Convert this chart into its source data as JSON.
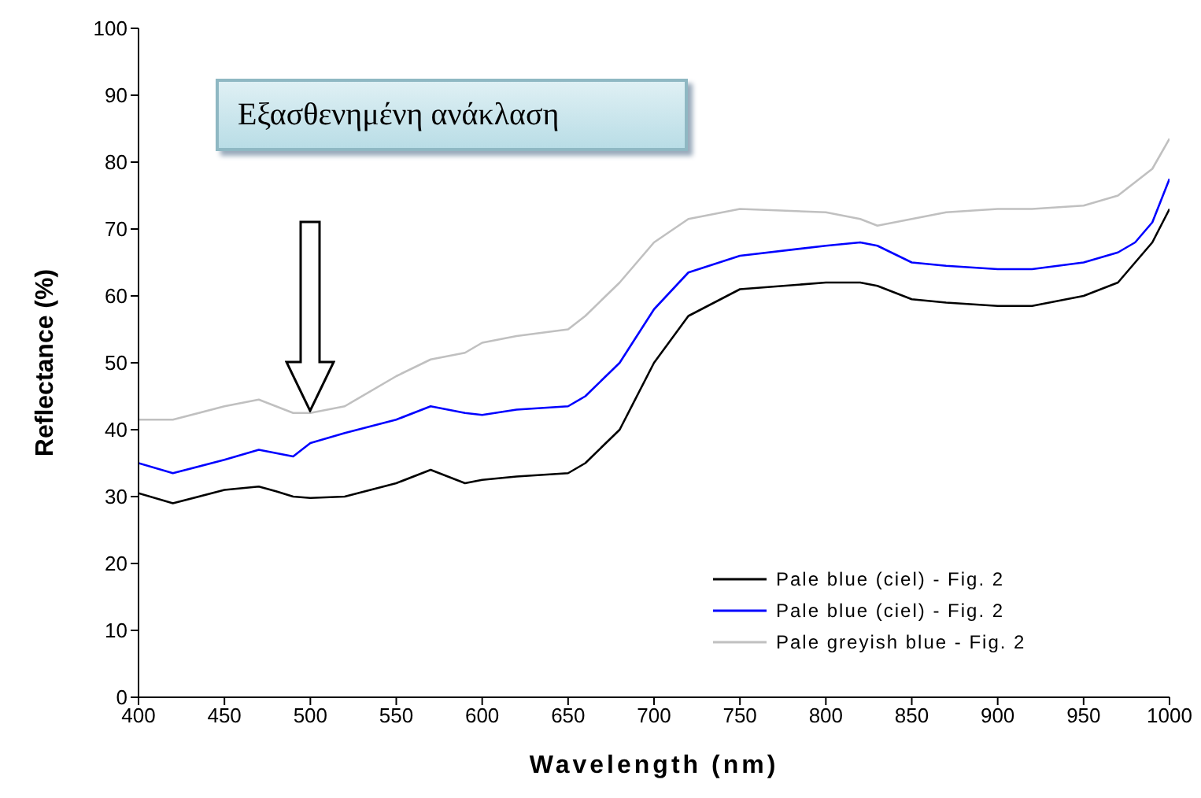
{
  "chart_data": {
    "type": "line",
    "xlabel": "Wavelength (nm)",
    "ylabel": "Reflectance (%)",
    "x": [
      400,
      420,
      450,
      470,
      480,
      490,
      500,
      520,
      550,
      570,
      590,
      600,
      620,
      650,
      660,
      680,
      700,
      720,
      750,
      800,
      820,
      830,
      850,
      870,
      900,
      920,
      950,
      970,
      980,
      990,
      1000
    ],
    "series": [
      {
        "name": "Pale blue (ciel) - Fig. 2",
        "color": "#000000",
        "values": [
          30.5,
          29,
          31,
          31.5,
          30.8,
          30,
          29.8,
          30,
          32,
          34,
          32,
          32.5,
          33,
          33.5,
          35,
          40,
          50,
          57,
          61,
          62,
          62,
          61.5,
          59.5,
          59,
          58.5,
          58.5,
          60,
          62,
          65,
          68,
          73
        ]
      },
      {
        "name": "Pale blue (ciel) - Fig. 2",
        "color": "#0000ff",
        "values": [
          35,
          33.5,
          35.5,
          37,
          36.5,
          36,
          38,
          39.5,
          41.5,
          43.5,
          42.5,
          42.2,
          43,
          43.5,
          45,
          50,
          58,
          63.5,
          66,
          67.5,
          68,
          67.5,
          65,
          64.5,
          64,
          64,
          65,
          66.5,
          68,
          71,
          77.5
        ]
      },
      {
        "name": "Pale greyish blue - Fig. 2",
        "color": "#c0c0c0",
        "values": [
          41.5,
          41.5,
          43.5,
          44.5,
          43.5,
          42.5,
          42.5,
          43.5,
          48,
          50.5,
          51.5,
          53,
          54,
          55,
          57,
          62,
          68,
          71.5,
          73,
          72.5,
          71.5,
          70.5,
          71.5,
          72.5,
          73,
          73,
          73.5,
          75,
          77,
          79,
          83.5
        ]
      }
    ],
    "xlim": [
      400,
      1000
    ],
    "xticks": [
      400,
      450,
      500,
      550,
      600,
      650,
      700,
      750,
      800,
      850,
      900,
      950,
      1000
    ],
    "ylim": [
      0,
      100
    ],
    "yticks": [
      0,
      10,
      20,
      30,
      40,
      50,
      60,
      70,
      80,
      90,
      100
    ],
    "grid": false,
    "legend": "bottom right",
    "marker": "none",
    "line_style": "solid",
    "annotations": [
      "Εξασθενημένη ανάκλαση"
    ]
  }
}
